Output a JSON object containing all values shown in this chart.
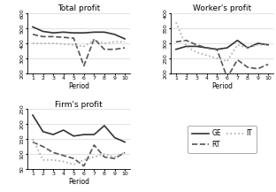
{
  "periods": [
    1,
    2,
    3,
    4,
    5,
    6,
    7,
    8,
    9,
    10
  ],
  "total_profit": {
    "GE": [
      510,
      480,
      470,
      475,
      470,
      470,
      475,
      475,
      460,
      430
    ],
    "RT": [
      460,
      445,
      445,
      440,
      435,
      250,
      430,
      360,
      360,
      370
    ],
    "IT": [
      400,
      400,
      400,
      395,
      390,
      380,
      420,
      400,
      410,
      410
    ]
  },
  "workers_profit": {
    "GE": [
      280,
      290,
      290,
      285,
      280,
      285,
      310,
      285,
      300,
      295
    ],
    "RT": [
      305,
      310,
      295,
      285,
      280,
      185,
      245,
      220,
      215,
      230
    ],
    "IT": [
      370,
      290,
      270,
      260,
      250,
      240,
      295,
      285,
      295,
      295
    ]
  },
  "firms_profit": {
    "GE": [
      230,
      175,
      165,
      180,
      160,
      165,
      165,
      195,
      155,
      140
    ],
    "RT": [
      140,
      125,
      105,
      95,
      85,
      60,
      130,
      90,
      85,
      105
    ],
    "IT": [
      150,
      80,
      80,
      75,
      65,
      80,
      90,
      100,
      90,
      105
    ]
  },
  "total_profit_ylim": [
    200,
    600
  ],
  "total_profit_yticks": [
    200,
    300,
    400,
    500,
    600
  ],
  "workers_profit_ylim": [
    200,
    400
  ],
  "workers_profit_yticks": [
    200,
    250,
    300,
    350,
    400
  ],
  "firms_profit_ylim": [
    50,
    250
  ],
  "firms_profit_yticks": [
    50,
    100,
    150,
    200,
    250
  ],
  "line_colors": {
    "GE": "#333333",
    "RT": "#555555",
    "IT": "#aaaaaa"
  },
  "line_styles": {
    "GE": "-",
    "RT": "--",
    "IT": ":"
  },
  "line_widths": {
    "GE": 1.2,
    "RT": 1.2,
    "IT": 1.2
  },
  "xlabel": "Period",
  "title_total": "Total profit",
  "title_workers": "Worker's profit",
  "title_firms": "Firm's profit",
  "legend_labels": [
    "GE",
    "RT",
    "IT"
  ],
  "background_color": "#ffffff",
  "grid_color": "#cccccc"
}
